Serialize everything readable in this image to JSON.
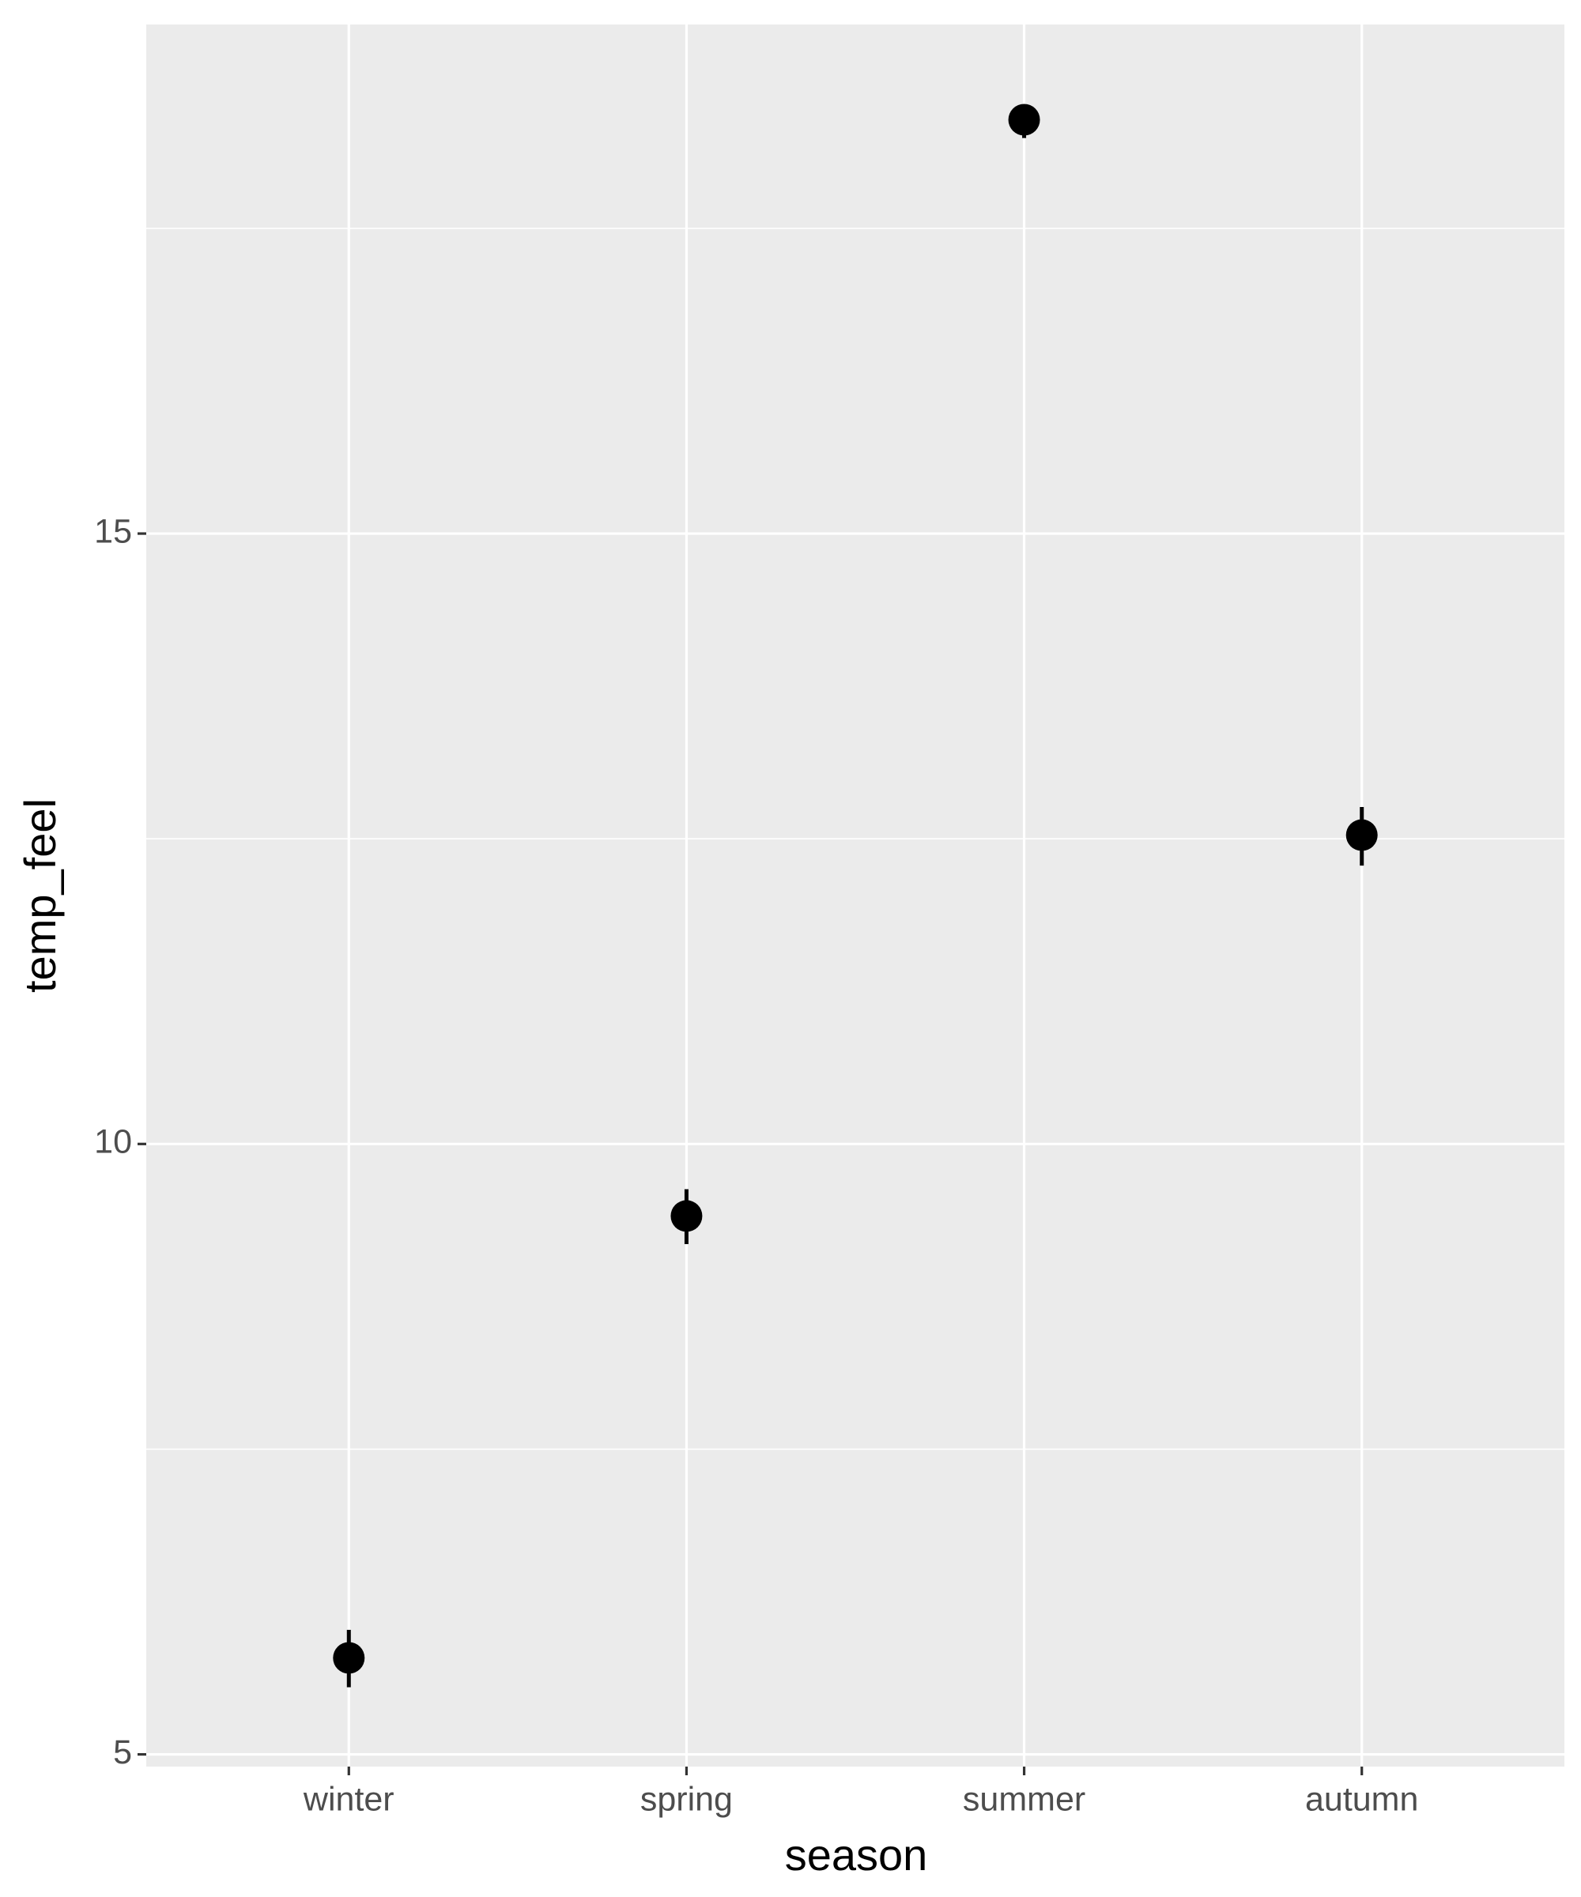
{
  "chart_data": {
    "type": "pointrange",
    "x_label": "season",
    "y_label": "temp_feel",
    "categories": [
      "winter",
      "spring",
      "summer",
      "autumn"
    ],
    "series": [
      {
        "color": "#000000",
        "values": [
          5.79,
          9.41,
          18.39,
          12.53
        ],
        "lower": [
          5.55,
          9.18,
          18.24,
          12.28
        ],
        "upper": [
          6.02,
          9.63,
          18.51,
          12.76
        ]
      }
    ],
    "ylim": [
      4.9,
      19.17
    ],
    "yticks": [
      5,
      10,
      15
    ],
    "minor_yticks": [
      7.5,
      12.5,
      17.5
    ],
    "grid": true,
    "panel_color": "#ebebeb"
  }
}
